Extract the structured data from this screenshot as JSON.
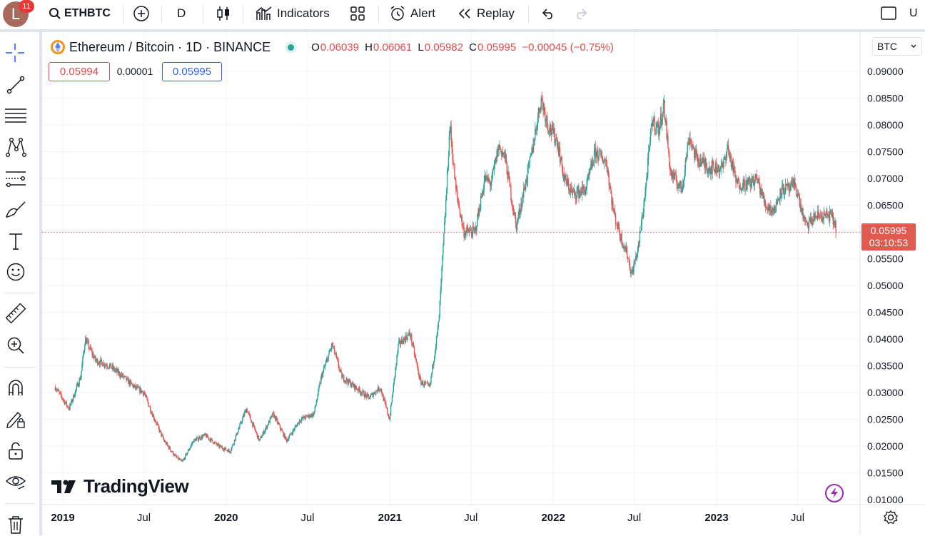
{
  "toolbar": {
    "avatar_letter": "L",
    "notif_count": "11",
    "symbol": "ETHBTC",
    "interval": "D",
    "indicators_label": "Indicators",
    "alert_label": "Alert",
    "replay_label": "Replay",
    "layout_letter": "U"
  },
  "legend": {
    "title": "Ethereum / Bitcoin · 1D · BINANCE",
    "open_key": "O",
    "open": "0.06039",
    "high_key": "H",
    "high": "0.06061",
    "low_key": "L",
    "low": "0.05982",
    "close_key": "C",
    "close": "0.05995",
    "change": "−0.00045 (−0.75%)",
    "bid": "0.05994",
    "spread": "0.00001",
    "ask": "0.05995"
  },
  "currency_select": "BTC",
  "price_label": {
    "price": "0.05995",
    "countdown": "03:10:53"
  },
  "watermark": "TradingView",
  "colors": {
    "up": "#26a69a",
    "down": "#ef5350",
    "last_price": "#e05a4f",
    "accent": "#2962ff"
  },
  "chart_data": {
    "type": "candlestick",
    "ylim": [
      0.01,
      0.09
    ],
    "y_ticks": [
      "0.09000",
      "0.08500",
      "0.08000",
      "0.07500",
      "0.07000",
      "0.06500",
      "0.06000",
      "0.05500",
      "0.05000",
      "0.04500",
      "0.04000",
      "0.03500",
      "0.03000",
      "0.02500",
      "0.02000",
      "0.01500",
      "0.01000"
    ],
    "x_tick_labels": [
      "2019",
      "Jul",
      "2020",
      "Jul",
      "2021",
      "Jul",
      "2022",
      "Jul",
      "2023",
      "Jul"
    ],
    "last_price": 0.05995,
    "series": [
      {
        "date": "2018-12-15",
        "value": 0.031
      },
      {
        "date": "2019-01-15",
        "value": 0.027
      },
      {
        "date": "2019-02-10",
        "value": 0.033
      },
      {
        "date": "2019-02-20",
        "value": 0.04
      },
      {
        "date": "2019-03-15",
        "value": 0.036
      },
      {
        "date": "2019-04-15",
        "value": 0.035
      },
      {
        "date": "2019-05-15",
        "value": 0.033
      },
      {
        "date": "2019-06-10",
        "value": 0.031
      },
      {
        "date": "2019-07-01",
        "value": 0.03
      },
      {
        "date": "2019-07-20",
        "value": 0.026
      },
      {
        "date": "2019-08-15",
        "value": 0.021
      },
      {
        "date": "2019-09-10",
        "value": 0.018
      },
      {
        "date": "2019-09-25",
        "value": 0.017
      },
      {
        "date": "2019-10-20",
        "value": 0.021
      },
      {
        "date": "2019-11-15",
        "value": 0.022
      },
      {
        "date": "2019-12-15",
        "value": 0.02
      },
      {
        "date": "2020-01-10",
        "value": 0.019
      },
      {
        "date": "2020-02-15",
        "value": 0.027
      },
      {
        "date": "2020-03-15",
        "value": 0.021
      },
      {
        "date": "2020-04-15",
        "value": 0.026
      },
      {
        "date": "2020-05-15",
        "value": 0.021
      },
      {
        "date": "2020-06-15",
        "value": 0.025
      },
      {
        "date": "2020-07-15",
        "value": 0.026
      },
      {
        "date": "2020-08-01",
        "value": 0.033
      },
      {
        "date": "2020-08-25",
        "value": 0.039
      },
      {
        "date": "2020-09-15",
        "value": 0.033
      },
      {
        "date": "2020-10-15",
        "value": 0.031
      },
      {
        "date": "2020-11-15",
        "value": 0.029
      },
      {
        "date": "2020-12-10",
        "value": 0.031
      },
      {
        "date": "2020-12-31",
        "value": 0.025
      },
      {
        "date": "2021-01-20",
        "value": 0.039
      },
      {
        "date": "2021-02-15",
        "value": 0.041
      },
      {
        "date": "2021-03-10",
        "value": 0.032
      },
      {
        "date": "2021-03-31",
        "value": 0.031
      },
      {
        "date": "2021-04-20",
        "value": 0.043
      },
      {
        "date": "2021-05-05",
        "value": 0.064
      },
      {
        "date": "2021-05-15",
        "value": 0.08
      },
      {
        "date": "2021-05-28",
        "value": 0.068
      },
      {
        "date": "2021-06-15",
        "value": 0.06
      },
      {
        "date": "2021-07-10",
        "value": 0.06
      },
      {
        "date": "2021-08-01",
        "value": 0.07
      },
      {
        "date": "2021-08-15",
        "value": 0.069
      },
      {
        "date": "2021-09-01",
        "value": 0.076
      },
      {
        "date": "2021-09-15",
        "value": 0.074
      },
      {
        "date": "2021-10-10",
        "value": 0.061
      },
      {
        "date": "2021-11-10",
        "value": 0.073
      },
      {
        "date": "2021-12-05",
        "value": 0.085
      },
      {
        "date": "2021-12-20",
        "value": 0.08
      },
      {
        "date": "2022-01-10",
        "value": 0.077
      },
      {
        "date": "2022-01-25",
        "value": 0.07
      },
      {
        "date": "2022-02-15",
        "value": 0.067
      },
      {
        "date": "2022-03-15",
        "value": 0.068
      },
      {
        "date": "2022-04-05",
        "value": 0.075
      },
      {
        "date": "2022-04-30",
        "value": 0.073
      },
      {
        "date": "2022-05-15",
        "value": 0.064
      },
      {
        "date": "2022-06-01",
        "value": 0.059
      },
      {
        "date": "2022-06-15",
        "value": 0.056
      },
      {
        "date": "2022-06-25",
        "value": 0.052
      },
      {
        "date": "2022-07-10",
        "value": 0.057
      },
      {
        "date": "2022-07-25",
        "value": 0.067
      },
      {
        "date": "2022-08-10",
        "value": 0.081
      },
      {
        "date": "2022-08-25",
        "value": 0.079
      },
      {
        "date": "2022-09-05",
        "value": 0.084
      },
      {
        "date": "2022-09-20",
        "value": 0.071
      },
      {
        "date": "2022-10-15",
        "value": 0.068
      },
      {
        "date": "2022-11-01",
        "value": 0.078
      },
      {
        "date": "2022-11-15",
        "value": 0.074
      },
      {
        "date": "2022-12-15",
        "value": 0.072
      },
      {
        "date": "2023-01-15",
        "value": 0.072
      },
      {
        "date": "2023-01-25",
        "value": 0.076
      },
      {
        "date": "2023-02-15",
        "value": 0.069
      },
      {
        "date": "2023-03-15",
        "value": 0.069
      },
      {
        "date": "2023-04-01",
        "value": 0.07
      },
      {
        "date": "2023-04-20",
        "value": 0.065
      },
      {
        "date": "2023-05-10",
        "value": 0.064
      },
      {
        "date": "2023-05-25",
        "value": 0.068
      },
      {
        "date": "2023-06-15",
        "value": 0.068
      },
      {
        "date": "2023-06-25",
        "value": 0.069
      },
      {
        "date": "2023-07-10",
        "value": 0.064
      },
      {
        "date": "2023-07-20",
        "value": 0.061
      },
      {
        "date": "2023-08-10",
        "value": 0.063
      },
      {
        "date": "2023-09-01",
        "value": 0.063
      },
      {
        "date": "2023-09-15",
        "value": 0.063
      },
      {
        "date": "2023-09-28",
        "value": 0.06
      }
    ]
  }
}
